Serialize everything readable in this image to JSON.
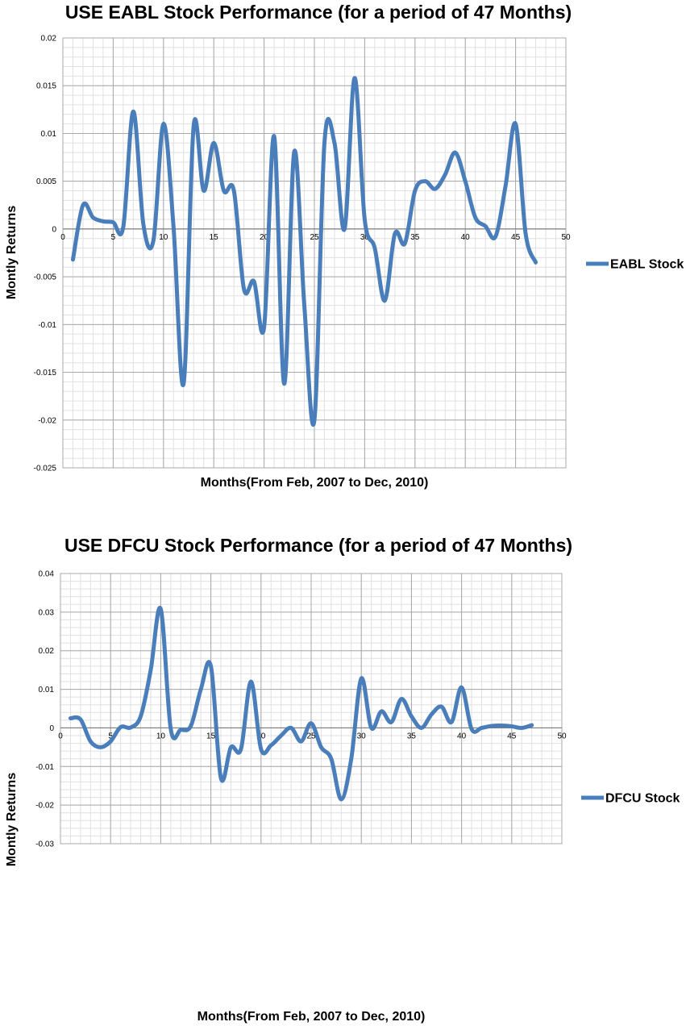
{
  "chart_data": [
    {
      "type": "line",
      "title": "USE EABL Stock Performance (for a period of 47 Months)",
      "xlabel": "Months(From Feb, 2007 to Dec, 2010)",
      "ylabel": "Montly Returns",
      "xlim": [
        0,
        50
      ],
      "ylim": [
        -0.025,
        0.02
      ],
      "xticks": [
        0,
        5,
        10,
        15,
        20,
        25,
        30,
        35,
        40,
        45,
        50
      ],
      "yticks": [
        0.02,
        0.015,
        0.01,
        0.005,
        0,
        -0.005,
        -0.01,
        -0.015,
        -0.02,
        -0.025
      ],
      "xtick_labels": [
        "0",
        "5",
        "10",
        "15",
        "20",
        "25",
        "30",
        "35",
        "40",
        "45",
        "50"
      ],
      "ytick_labels": [
        "0.02",
        "0.015",
        "0.01",
        "0.005",
        "0",
        "-0.005",
        "-0.01",
        "-0.015",
        "-0.02",
        "-0.025"
      ],
      "grid": true,
      "legend": "right",
      "series": [
        {
          "name": "EABL Stock",
          "color": "#4a7ebb",
          "x": [
            1,
            2,
            3,
            4,
            5,
            6,
            7,
            8,
            9,
            10,
            11,
            12,
            13,
            14,
            15,
            16,
            17,
            18,
            19,
            20,
            21,
            22,
            23,
            24,
            25,
            26,
            27,
            28,
            29,
            30,
            31,
            32,
            33,
            34,
            35,
            36,
            37,
            38,
            39,
            40,
            41,
            42,
            43,
            44,
            45,
            46,
            47
          ],
          "y": [
            -0.0032,
            0.0025,
            0.0012,
            0.0008,
            0.0007,
            0.0002,
            0.0123,
            0.0005,
            -0.0012,
            0.011,
            0.0002,
            -0.0162,
            0.0108,
            0.004,
            0.009,
            0.004,
            0.004,
            -0.0063,
            -0.0055,
            -0.0103,
            0.0097,
            -0.0162,
            0.0081,
            -0.008,
            -0.02,
            0.009,
            0.009,
            0.0,
            0.0158,
            0.001,
            -0.002,
            -0.0075,
            -0.0005,
            -0.0015,
            0.004,
            0.005,
            0.0042,
            0.0057,
            0.008,
            0.005,
            0.0012,
            0.0003,
            -0.0008,
            0.0045,
            0.011,
            -0.0005,
            -0.0035
          ]
        }
      ]
    },
    {
      "type": "line",
      "title": "USE DFCU Stock Performance (for a period of 47 Months)",
      "xlabel": "Months(From Feb, 2007 to Dec, 2010)",
      "ylabel": "Montly Returns",
      "xlim": [
        0,
        50
      ],
      "ylim": [
        -0.03,
        0.04
      ],
      "xticks": [
        0,
        5,
        10,
        15,
        20,
        25,
        30,
        35,
        40,
        45,
        50
      ],
      "yticks": [
        0.04,
        0.03,
        0.02,
        0.01,
        0,
        -0.01,
        -0.02,
        -0.03
      ],
      "xtick_labels": [
        "0",
        "5",
        "10",
        "15",
        "20",
        "25",
        "30",
        "35",
        "40",
        "45",
        "50"
      ],
      "ytick_labels": [
        "0.04",
        "0.03",
        "0.02",
        "0.01",
        "0",
        "-0.01",
        "-0.02",
        "-0.03"
      ],
      "grid": true,
      "legend": "right",
      "series": [
        {
          "name": "DFCU Stock",
          "color": "#4a7ebb",
          "x": [
            1,
            2,
            3,
            4,
            5,
            6,
            7,
            8,
            9,
            10,
            11,
            12,
            13,
            14,
            15,
            16,
            17,
            18,
            19,
            20,
            21,
            22,
            23,
            24,
            25,
            26,
            27,
            28,
            29,
            30,
            31,
            32,
            33,
            34,
            35,
            36,
            37,
            38,
            39,
            40,
            41,
            42,
            43,
            44,
            45,
            46,
            47
          ],
          "y": [
            0.0025,
            0.0022,
            -0.0035,
            -0.005,
            -0.0035,
            0.0002,
            0.0001,
            0.003,
            0.015,
            0.0308,
            -0.0003,
            -0.0005,
            0.0005,
            0.01,
            0.016,
            -0.013,
            -0.005,
            -0.0055,
            0.012,
            -0.0055,
            -0.0045,
            -0.002,
            0.0,
            -0.0035,
            0.0012,
            -0.005,
            -0.008,
            -0.0185,
            -0.008,
            0.0128,
            0.0,
            0.0043,
            0.0015,
            0.0075,
            0.003,
            0.0,
            0.0035,
            0.0055,
            0.0015,
            0.0105,
            -0.0003,
            0.0,
            0.0005,
            0.0006,
            0.0004,
            0.0,
            0.0007
          ]
        }
      ]
    }
  ]
}
